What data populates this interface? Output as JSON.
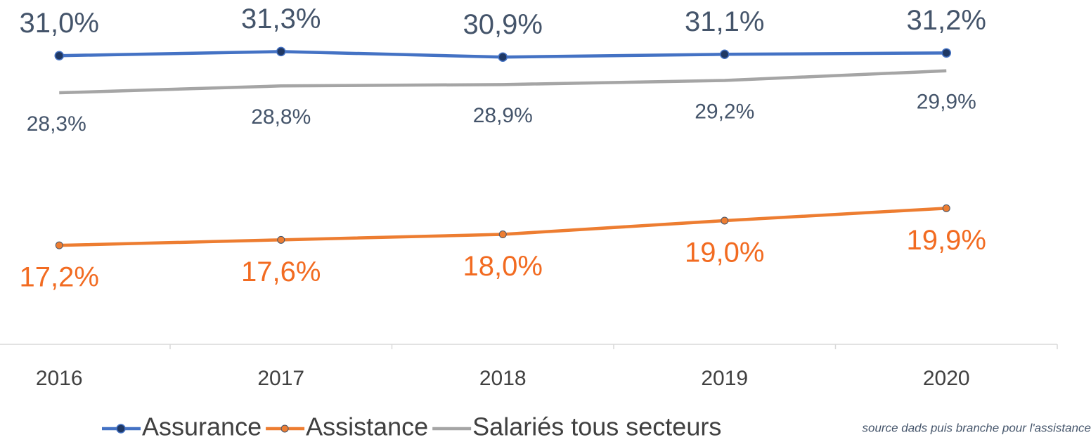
{
  "chart_data": {
    "type": "line",
    "categories": [
      "2016",
      "2017",
      "2018",
      "2019",
      "2020"
    ],
    "series": [
      {
        "name": "Assurance",
        "color": "#4472c4",
        "values": [
          31.0,
          31.3,
          30.9,
          31.1,
          31.2
        ],
        "value_labels": [
          "31,0%",
          "31,3%",
          "30,9%",
          "31,1%",
          "31,2%"
        ]
      },
      {
        "name": "Assistance",
        "color": "#ed7d31",
        "values": [
          17.2,
          17.6,
          18.0,
          19.0,
          19.9
        ],
        "value_labels": [
          "17,2%",
          "17,6%",
          "18,0%",
          "19,0%",
          "19,9%"
        ]
      },
      {
        "name": "Salariés tous secteurs",
        "color": "#a5a5a5",
        "values": [
          28.3,
          28.8,
          28.9,
          29.2,
          29.9
        ],
        "value_labels": [
          "28,3%",
          "28,8%",
          "28,9%",
          "29,2%",
          "29,9%"
        ]
      }
    ],
    "ylim": [
      10,
      35
    ],
    "source": "source dads puis branche pour l'assistance"
  }
}
